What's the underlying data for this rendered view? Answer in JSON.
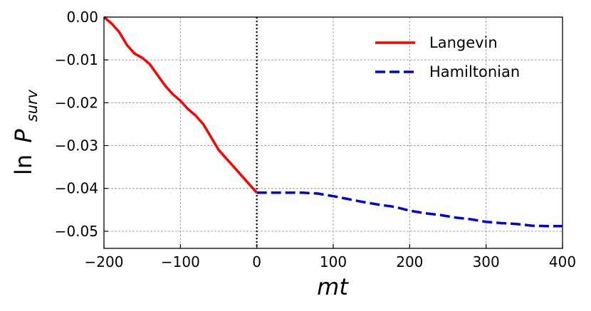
{
  "chart_data": {
    "type": "line",
    "xlabel": "mt",
    "ylabel_prefix": "ln",
    "ylabel_symbol": "P",
    "ylabel_subscript": "surv",
    "xlim": [
      -200,
      400
    ],
    "ylim": [
      -0.054,
      0.0
    ],
    "xticks": [
      -200,
      -100,
      0,
      100,
      200,
      300,
      400
    ],
    "xtick_labels": [
      "−200",
      "−100",
      "0",
      "100",
      "200",
      "300",
      "400"
    ],
    "yticks": [
      0.0,
      -0.01,
      -0.02,
      -0.03,
      -0.04,
      -0.05
    ],
    "ytick_labels": [
      "0.00",
      "−0.01",
      "−0.02",
      "−0.03",
      "−0.04",
      "−0.05"
    ],
    "grid": true,
    "vertical_marker_x": 0,
    "legend_position": "top-right",
    "series": [
      {
        "name": "Langevin",
        "color": "#ff0000",
        "style": "solid",
        "x": [
          -200,
          -190,
          -180,
          -170,
          -160,
          -150,
          -140,
          -130,
          -120,
          -110,
          -100,
          -90,
          -80,
          -70,
          -60,
          -50,
          -40,
          -30,
          -20,
          -10,
          0
        ],
        "y": [
          0.0,
          -0.0015,
          -0.0035,
          -0.0065,
          -0.0085,
          -0.0095,
          -0.011,
          -0.0135,
          -0.016,
          -0.018,
          -0.0195,
          -0.0215,
          -0.023,
          -0.025,
          -0.028,
          -0.031,
          -0.033,
          -0.035,
          -0.037,
          -0.039,
          -0.041
        ]
      },
      {
        "name": "Hamiltonian",
        "color": "#0000dd",
        "style": "dashed",
        "x": [
          0,
          20,
          40,
          60,
          80,
          100,
          120,
          140,
          160,
          180,
          200,
          220,
          240,
          260,
          280,
          300,
          320,
          340,
          360,
          380,
          400
        ],
        "y": [
          -0.041,
          -0.041,
          -0.041,
          -0.041,
          -0.0412,
          -0.0418,
          -0.0425,
          -0.0432,
          -0.0438,
          -0.0443,
          -0.0452,
          -0.0458,
          -0.0462,
          -0.0468,
          -0.0472,
          -0.0478,
          -0.0481,
          -0.0483,
          -0.0487,
          -0.0488,
          -0.0488
        ]
      }
    ]
  }
}
